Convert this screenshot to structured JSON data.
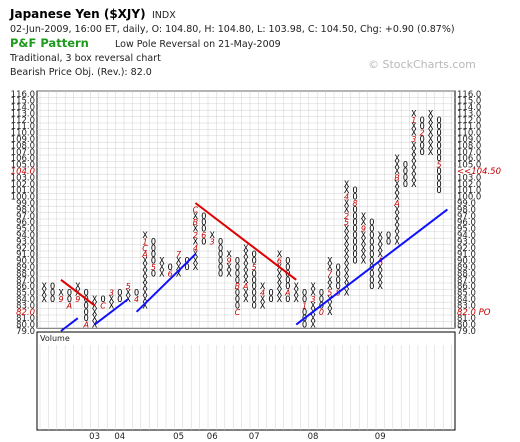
{
  "header": {
    "title": "Japanese Yen ($XJY)",
    "exchange": "INDX",
    "quote_line": "02-Jun-2009, 16:00 ET, daily, O: 104.80, H: 104.80, L: 103.98, C: 104.50, Chg: +0.90 (0.87%)",
    "pf_label": "P&F Pattern",
    "pattern_text": "Low Pole Reversal on 21-May-2009",
    "chart_type_text": "Traditional, 3 box reversal chart",
    "price_objective_text": "Bearish Price Obj. (Rev.): 82.0",
    "watermark": "© StockCharts.com"
  },
  "volume_label": "Volume",
  "chart_data": {
    "type": "point-and-figure",
    "box_size": 1.0,
    "reversal": 3,
    "ylim": [
      79.0,
      116.0
    ],
    "y_ticks": [
      79,
      80,
      81,
      82,
      83,
      84,
      85,
      86,
      87,
      88,
      89,
      90,
      91,
      92,
      93,
      94,
      95,
      96,
      97,
      98,
      99,
      100,
      101,
      102,
      103,
      104,
      105,
      106,
      107,
      108,
      109,
      110,
      111,
      112,
      113,
      114,
      115,
      116
    ],
    "y_tick_labels": [
      "79.0",
      "80.0",
      "81.0",
      "82.0",
      "83.0",
      "84.0",
      "85.0",
      "86.0",
      "87.0",
      "88.0",
      "89.0",
      "90.0",
      "91.0",
      "92.0",
      "93.0",
      "94.0",
      "95.0",
      "96.0",
      "97.0",
      "98.0",
      "99.0",
      "100.0",
      "101.0",
      "102.0",
      "103.0",
      "104.0",
      "105.0",
      "106.0",
      "107.0",
      "108.0",
      "109.0",
      "110.0",
      "111.0",
      "112.0",
      "113.0",
      "114.0",
      "115.0",
      "116.0"
    ],
    "red_levels": [
      {
        "value": 82,
        "left_label": "82.0",
        "right_label": "82.0 PO"
      },
      {
        "value": 104,
        "left_label": "104.0",
        "right_label": "<<104.50"
      }
    ],
    "x_date_labels": [
      {
        "label": "03",
        "column": 6
      },
      {
        "label": "04",
        "column": 9
      },
      {
        "label": "05",
        "column": 16
      },
      {
        "label": "06",
        "column": 20
      },
      {
        "label": "07",
        "column": 25
      },
      {
        "label": "08",
        "column": 32
      },
      {
        "label": "09",
        "column": 40
      }
    ],
    "columns": [
      {
        "type": "X",
        "low": 84,
        "high": 86,
        "marks": {}
      },
      {
        "type": "O",
        "low": 84,
        "high": 86,
        "marks": {}
      },
      {
        "type": "X",
        "low": 84,
        "high": 85,
        "marks": {
          "84": "9"
        }
      },
      {
        "type": "O",
        "low": 83,
        "high": 85,
        "marks": {
          "83": "A"
        }
      },
      {
        "type": "X",
        "low": 84,
        "high": 86,
        "marks": {
          "84": "9"
        }
      },
      {
        "type": "O",
        "low": 80,
        "high": 85,
        "marks": {
          "80": "A"
        }
      },
      {
        "type": "X",
        "low": 80,
        "high": 84,
        "marks": {}
      },
      {
        "type": "O",
        "low": 83,
        "high": 84,
        "marks": {
          "83": "C"
        }
      },
      {
        "type": "X",
        "low": 83,
        "high": 85,
        "marks": {
          "85": "3"
        }
      },
      {
        "type": "O",
        "low": 84,
        "high": 85,
        "marks": {}
      },
      {
        "type": "X",
        "low": 84,
        "high": 86,
        "marks": {
          "86": "5"
        }
      },
      {
        "type": "O",
        "low": 84,
        "high": 85,
        "marks": {
          "84": "4"
        }
      },
      {
        "type": "X",
        "low": 83,
        "high": 94,
        "marks": {
          "93": "1",
          "92": "C",
          "91": "A"
        }
      },
      {
        "type": "O",
        "low": 88,
        "high": 93,
        "marks": {
          "89": "5"
        }
      },
      {
        "type": "X",
        "low": 88,
        "high": 90,
        "marks": {}
      },
      {
        "type": "O",
        "low": 88,
        "high": 89,
        "marks": {
          "88": "6"
        }
      },
      {
        "type": "X",
        "low": 88,
        "high": 91,
        "marks": {
          "91": "7"
        }
      },
      {
        "type": "O",
        "low": 89,
        "high": 90,
        "marks": {}
      },
      {
        "type": "X",
        "low": 89,
        "high": 98,
        "marks": {
          "98": "C",
          "96": "B",
          "94": "2",
          "92": "4"
        }
      },
      {
        "type": "O",
        "low": 93,
        "high": 97,
        "marks": {
          "94": "6"
        }
      },
      {
        "type": "X",
        "low": 93,
        "high": 94,
        "marks": {
          "93": "3"
        }
      },
      {
        "type": "O",
        "low": 88,
        "high": 93,
        "marks": {}
      },
      {
        "type": "X",
        "low": 88,
        "high": 91,
        "marks": {
          "90": "9"
        }
      },
      {
        "type": "O",
        "low": 82,
        "high": 90,
        "marks": {
          "86": "B",
          "82": "C"
        }
      },
      {
        "type": "X",
        "low": 84,
        "high": 92,
        "marks": {
          "86": "A"
        }
      },
      {
        "type": "O",
        "low": 83,
        "high": 91,
        "marks": {
          "89": "5"
        }
      },
      {
        "type": "X",
        "low": 83,
        "high": 86,
        "marks": {
          "85": "4"
        }
      },
      {
        "type": "O",
        "low": 84,
        "high": 85,
        "marks": {}
      },
      {
        "type": "X",
        "low": 84,
        "high": 91,
        "marks": {
          "90": "6"
        }
      },
      {
        "type": "O",
        "low": 84,
        "high": 90,
        "marks": {
          "85": "A"
        }
      },
      {
        "type": "X",
        "low": 84,
        "high": 86,
        "marks": {}
      },
      {
        "type": "O",
        "low": 80,
        "high": 85,
        "marks": {
          "83": "1"
        }
      },
      {
        "type": "X",
        "low": 80,
        "high": 86,
        "marks": {
          "84": "3"
        }
      },
      {
        "type": "O",
        "low": 82,
        "high": 85,
        "marks": {
          "82": "0"
        }
      },
      {
        "type": "X",
        "low": 82,
        "high": 90,
        "marks": {
          "85": "5",
          "88": "7"
        }
      },
      {
        "type": "O",
        "low": 85,
        "high": 89,
        "marks": {
          "85": "8"
        }
      },
      {
        "type": "X",
        "low": 85,
        "high": 102,
        "marks": {
          "100": "4",
          "97": "2",
          "96": "5"
        }
      },
      {
        "type": "O",
        "low": 90,
        "high": 101,
        "marks": {
          "99": "8"
        }
      },
      {
        "type": "X",
        "low": 90,
        "high": 97,
        "marks": {
          "95": "9"
        }
      },
      {
        "type": "O",
        "low": 86,
        "high": 96,
        "marks": {}
      },
      {
        "type": "X",
        "low": 86,
        "high": 94,
        "marks": {
          "90": "A"
        }
      },
      {
        "type": "O",
        "low": 93,
        "high": 94,
        "marks": {}
      },
      {
        "type": "X",
        "low": 93,
        "high": 106,
        "marks": {
          "103": "B",
          "99": "A"
        }
      },
      {
        "type": "O",
        "low": 102,
        "high": 105,
        "marks": {}
      },
      {
        "type": "X",
        "low": 102,
        "high": 113,
        "marks": {
          "112": "1",
          "109": "3"
        }
      },
      {
        "type": "O",
        "low": 107,
        "high": 112,
        "marks": {
          "110": "2"
        }
      },
      {
        "type": "X",
        "low": 107,
        "high": 113,
        "marks": {}
      },
      {
        "type": "O",
        "low": 101,
        "high": 112,
        "marks": {
          "105": "5"
        }
      }
    ],
    "trendlines": [
      {
        "color": "#e00000",
        "from": {
          "col": 2,
          "value": 86.5
        },
        "to": {
          "col": 6,
          "value": 82.5
        }
      },
      {
        "color": "#e00000",
        "from": {
          "col": 18,
          "value": 98.5
        },
        "to": {
          "col": 24,
          "value": 92.5
        }
      },
      {
        "color": "#e00000",
        "from": {
          "col": 24,
          "value": 92.5
        },
        "to": {
          "col": 30,
          "value": 86.5
        }
      },
      {
        "color": "#1010ff",
        "from": {
          "col": 2,
          "value": 78.5
        },
        "to": {
          "col": 4,
          "value": 80.5
        }
      },
      {
        "color": "#1010ff",
        "from": {
          "col": 6,
          "value": 79.5
        },
        "to": {
          "col": 10,
          "value": 83.5
        }
      },
      {
        "color": "#1010ff",
        "from": {
          "col": 11,
          "value": 81.5
        },
        "to": {
          "col": 18,
          "value": 90.5
        }
      },
      {
        "color": "#1010ff",
        "from": {
          "col": 30,
          "value": 79.5
        },
        "to": {
          "col": 48,
          "value": 97.5
        }
      }
    ]
  }
}
